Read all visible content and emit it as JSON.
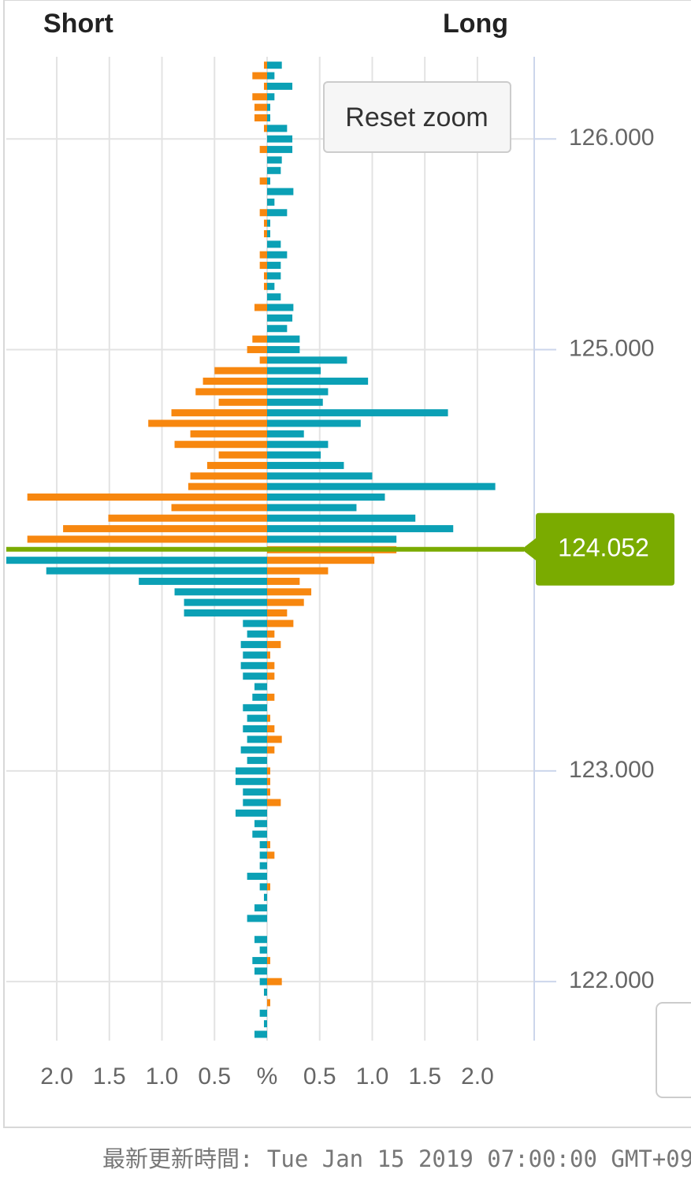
{
  "chart_data": {
    "type": "butterfly_bar",
    "left_title": "Short",
    "right_title": "Long",
    "button": "Reset zoom",
    "footer": "最新更新時間: Tue Jan 15 2019 07:00:00 GMT+0900",
    "current_price": 124.052,
    "price_line_color": "#7aab00",
    "y": [
      126.35,
      126.3,
      126.25,
      126.2,
      126.15,
      126.1,
      126.05,
      126,
      125.95,
      125.9,
      125.85,
      125.8,
      125.75,
      125.7,
      125.65,
      125.6,
      125.55,
      125.5,
      125.45,
      125.4,
      125.35,
      125.3,
      125.25,
      125.2,
      125.15,
      125.1,
      125.05,
      125,
      124.95,
      124.9,
      124.85,
      124.8,
      124.75,
      124.7,
      124.65,
      124.6,
      124.55,
      124.5,
      124.45,
      124.4,
      124.35,
      124.3,
      124.25,
      124.2,
      124.15,
      124.1,
      124.05,
      124,
      123.95,
      123.9,
      123.85,
      123.8,
      123.75,
      123.7,
      123.65,
      123.6,
      123.55,
      123.5,
      123.45,
      123.4,
      123.35,
      123.3,
      123.25,
      123.2,
      123.15,
      123.1,
      123.05,
      123,
      122.95,
      122.9,
      122.85,
      122.8,
      122.75,
      122.7,
      122.65,
      122.6,
      122.55,
      122.5,
      122.45,
      122.4,
      122.35,
      122.3,
      122.25,
      122.2,
      122.15,
      122.1,
      122.05,
      122,
      121.95,
      121.9,
      121.85,
      121.8,
      121.75
    ],
    "series": [
      {
        "side": "short",
        "color_above": "#f7870f",
        "color_below": "#0ba0b5",
        "values": [
          0.03,
          0.14,
          0.03,
          0.14,
          0.12,
          0.12,
          0.03,
          0,
          0.07,
          0,
          0,
          0.07,
          0,
          0,
          0.07,
          0.03,
          0.03,
          0,
          0.07,
          0.07,
          0.03,
          0.03,
          0,
          0.12,
          0,
          0,
          0.14,
          0.19,
          0.07,
          0.5,
          0.61,
          0.68,
          0.46,
          0.91,
          1.13,
          0.73,
          0.88,
          0.46,
          0.57,
          0.73,
          0.75,
          2.28,
          0.91,
          1.51,
          1.94,
          2.28,
          null,
          2.48,
          2.1,
          1.22,
          0.88,
          0.79,
          0.79,
          0.23,
          0.19,
          0.25,
          0.23,
          0.25,
          0.23,
          0.12,
          0.14,
          0.23,
          0.19,
          0.23,
          0.19,
          0.25,
          0.19,
          0.3,
          0.3,
          0.23,
          0.23,
          0.3,
          0.12,
          0.14,
          0.07,
          0.07,
          0.07,
          0.19,
          0.07,
          0.03,
          0.12,
          0.19,
          0,
          0.12,
          0.07,
          0.14,
          0.12,
          0.07,
          0.03,
          0,
          0.07,
          0.03,
          0.12
        ]
      },
      {
        "side": "long",
        "color_above": "#0ba0b5",
        "color_below": "#f7870f",
        "values": [
          0.14,
          0.07,
          0.24,
          0.07,
          0.03,
          0.03,
          0.19,
          0.24,
          0.24,
          0.14,
          0.13,
          0.03,
          0.25,
          0.07,
          0.19,
          0.03,
          0.03,
          0.13,
          0.19,
          0.13,
          0.13,
          0.07,
          0.13,
          0.25,
          0.24,
          0.19,
          0.31,
          0.31,
          0.76,
          0.51,
          0.96,
          0.58,
          0.53,
          1.72,
          0.89,
          0.35,
          0.58,
          0.51,
          0.73,
          1.0,
          2.17,
          1.12,
          0.85,
          1.41,
          1.77,
          1.23,
          1.23,
          1.02,
          0.58,
          0.31,
          0.42,
          0.35,
          0.19,
          0.25,
          0.07,
          0.13,
          0.03,
          0.07,
          0.07,
          0,
          0.07,
          0,
          0.03,
          0.07,
          0.14,
          0.07,
          0,
          0.03,
          0.03,
          0.03,
          0.13,
          0,
          0,
          0,
          0.03,
          0.07,
          0,
          0,
          0.03,
          0,
          0,
          0,
          0,
          0,
          0,
          0.03,
          0,
          0.14,
          0,
          0.03,
          0,
          0,
          0
        ]
      }
    ],
    "xlim": [
      -2.48,
      2.54
    ],
    "xticks": [
      {
        "value": -2,
        "label": "2.0"
      },
      {
        "value": -1.5,
        "label": "1.5"
      },
      {
        "value": -1,
        "label": "1.0"
      },
      {
        "value": -0.5,
        "label": "0.5"
      },
      {
        "value": 0,
        "label": "%"
      },
      {
        "value": 0.5,
        "label": "0.5"
      },
      {
        "value": 1,
        "label": "1.0"
      },
      {
        "value": 1.5,
        "label": "1.5"
      },
      {
        "value": 2,
        "label": "2.0"
      }
    ],
    "ylim": [
      121.72,
      126.39
    ],
    "yticks": [
      {
        "value": 122,
        "label": "122.000"
      },
      {
        "value": 123,
        "label": "123.000"
      },
      {
        "value": 125,
        "label": "125.000"
      },
      {
        "value": 126,
        "label": "126.000"
      }
    ],
    "grid": true
  }
}
